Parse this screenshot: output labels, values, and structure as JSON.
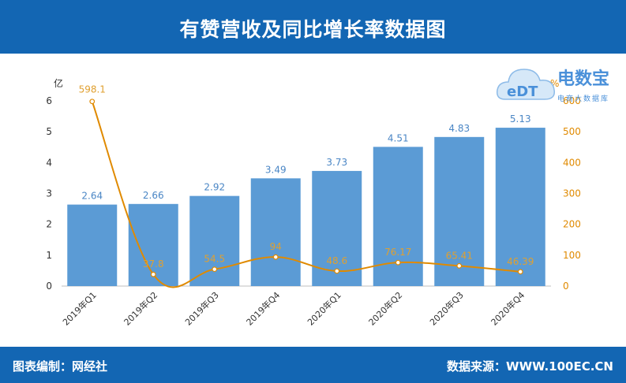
{
  "header": {
    "title": "有赞营收及同比增长率数据图"
  },
  "footer": {
    "left": "图表编制：网经社",
    "right": "数据来源：WWW.100EC.CN"
  },
  "logo": {
    "brand": "电数宝",
    "sub": "电商大数据库",
    "mark": "eDT"
  },
  "colors": {
    "header_bg": "#1366b3",
    "bar": "#5b9bd5",
    "line": "#e08a00",
    "bar_label": "#4a86c5",
    "line_label": "#e0a030"
  },
  "chart_data": {
    "type": "bar",
    "categories": [
      "2019年Q1",
      "2019年Q2",
      "2019年Q3",
      "2019年Q4",
      "2020年Q1",
      "2020年Q2",
      "2020年Q3",
      "2020年Q4"
    ],
    "series": [
      {
        "values": [
          2.64,
          2.66,
          2.92,
          3.49,
          3.73,
          4.51,
          4.83,
          5.13
        ],
        "axis": "left",
        "type": "bar"
      },
      {
        "values": [
          598.1,
          37.8,
          54.5,
          94,
          48.6,
          76.17,
          65.41,
          46.39
        ],
        "axis": "right",
        "type": "line"
      }
    ],
    "bar_labels": [
      "2.64",
      "2.66",
      "2.92",
      "3.49",
      "3.73",
      "4.51",
      "4.83",
      "5.13"
    ],
    "line_labels": [
      "598.1",
      "37.8",
      "54.5",
      "94",
      "48.6",
      "76.17",
      "65.41",
      "46.39"
    ],
    "left_axis": {
      "unit": "亿",
      "ylim": [
        0,
        6
      ],
      "ticks": [
        "0",
        "1",
        "2",
        "3",
        "4",
        "5",
        "6"
      ]
    },
    "right_axis": {
      "unit": "%",
      "ylim": [
        0,
        600
      ],
      "ticks": [
        "0",
        "100",
        "200",
        "300",
        "400",
        "500",
        "600"
      ]
    },
    "grid": false
  }
}
